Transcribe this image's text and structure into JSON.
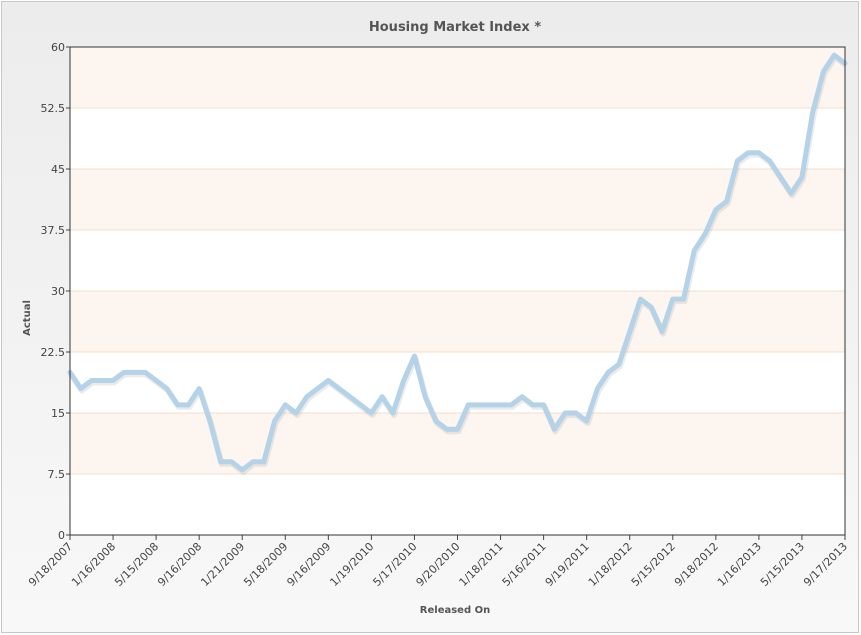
{
  "chart_data": {
    "type": "line",
    "title": "Housing Market Index *",
    "x_label": "Released On",
    "y_label": "Actual",
    "categories": [
      "9/18/2007",
      null,
      null,
      null,
      "1/16/2008",
      null,
      null,
      null,
      "5/15/2008",
      null,
      null,
      null,
      "9/16/2008",
      null,
      null,
      null,
      "1/21/2009",
      null,
      null,
      null,
      "5/18/2009",
      null,
      null,
      null,
      "9/16/2009",
      null,
      null,
      null,
      "1/19/2010",
      null,
      null,
      null,
      "5/17/2010",
      null,
      null,
      null,
      "9/20/2010",
      null,
      null,
      null,
      "1/18/2011",
      null,
      null,
      null,
      "5/16/2011",
      null,
      null,
      null,
      "9/19/2011",
      null,
      null,
      null,
      "1/18/2012",
      null,
      null,
      null,
      "5/15/2012",
      null,
      null,
      null,
      "9/18/2012",
      null,
      null,
      null,
      "1/16/2013",
      null,
      null,
      null,
      "5/15/2013",
      null,
      null,
      null,
      "9/17/2013"
    ],
    "values": [
      20,
      18,
      19,
      19,
      19,
      20,
      20,
      20,
      19,
      18,
      16,
      16,
      18,
      14,
      9,
      9,
      8,
      9,
      9,
      14,
      16,
      15,
      17,
      18,
      19,
      18,
      17,
      16,
      15,
      17,
      15,
      19,
      22,
      17,
      14,
      13,
      13,
      16,
      16,
      16,
      16,
      16,
      17,
      16,
      16,
      13,
      15,
      15,
      14,
      18,
      20,
      21,
      25,
      29,
      28,
      25,
      29,
      29,
      35,
      37,
      40,
      41,
      46,
      47,
      47,
      46,
      44,
      42,
      44,
      52,
      57,
      59,
      58
    ],
    "color": "#b4d2e8",
    "ylim": [
      0,
      60
    ],
    "yticks": [
      0,
      7.5,
      15,
      22.5,
      30,
      37.5,
      45,
      52.5,
      60
    ],
    "grid": true
  }
}
